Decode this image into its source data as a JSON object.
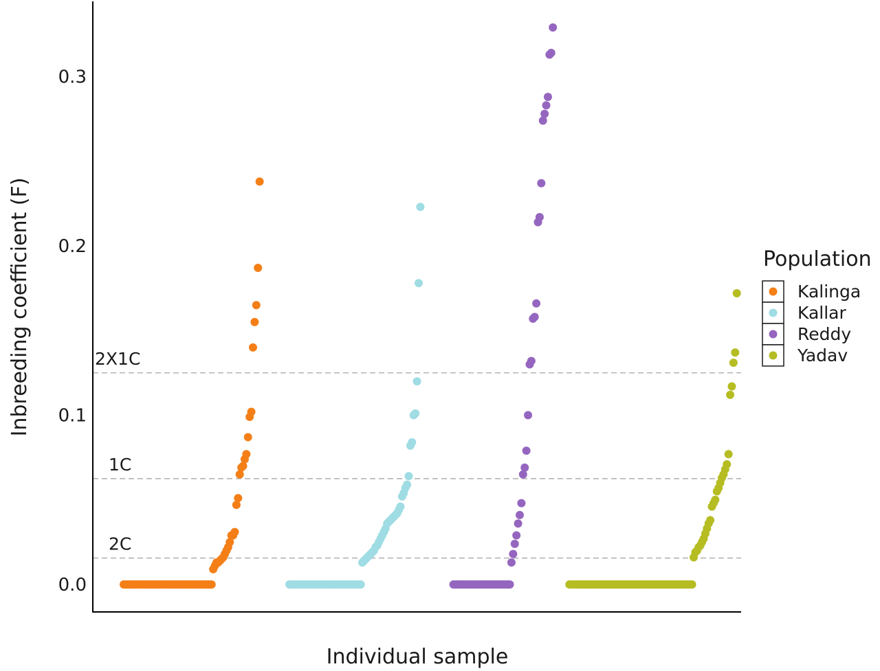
{
  "chart_data": {
    "type": "scatter",
    "xlabel": "Individual sample",
    "ylabel": "Inbreeding coefficient (F)",
    "ylim": [
      -0.016,
      0.345
    ],
    "y_ticks": [
      {
        "value": 0.0,
        "label": "0.0"
      },
      {
        "value": 0.1,
        "label": "0.1"
      },
      {
        "value": 0.2,
        "label": "0.2"
      },
      {
        "value": 0.3,
        "label": "0.3"
      }
    ],
    "x_ticks_shown": false,
    "grid": false,
    "reference_lines": [
      {
        "label": "2X1C",
        "value": 0.125
      },
      {
        "label": "1C",
        "value": 0.0625
      },
      {
        "label": "2C",
        "value": 0.0156
      }
    ],
    "legend": {
      "title": "Population",
      "position": "right"
    },
    "series": [
      {
        "name": "Kalinga",
        "color": "#F47F17",
        "start": 1,
        "zero_count": 54,
        "nonzero": [
          0.009,
          0.011,
          0.013,
          0.013,
          0.014,
          0.015,
          0.016,
          0.018,
          0.02,
          0.022,
          0.025,
          0.029,
          0.029,
          0.031,
          0.047,
          0.051,
          0.065,
          0.069,
          0.07,
          0.074,
          0.077,
          0.087,
          0.099,
          0.102,
          0.14,
          0.155,
          0.165,
          0.187,
          0.238
        ]
      },
      {
        "name": "Kallar",
        "color": "#9FDCE3",
        "start": 101,
        "zero_count": 44,
        "nonzero": [
          0.013,
          0.014,
          0.015,
          0.016,
          0.017,
          0.018,
          0.019,
          0.02,
          0.022,
          0.023,
          0.025,
          0.027,
          0.029,
          0.031,
          0.033,
          0.036,
          0.037,
          0.038,
          0.039,
          0.04,
          0.041,
          0.042,
          0.044,
          0.046,
          0.052,
          0.054,
          0.057,
          0.059,
          0.064,
          0.082,
          0.084,
          0.1,
          0.101,
          0.12,
          0.178,
          0.223
        ]
      },
      {
        "name": "Reddy",
        "color": "#9566BF",
        "start": 200,
        "zero_count": 35,
        "nonzero": [
          0.013,
          0.018,
          0.024,
          0.029,
          0.036,
          0.041,
          0.048,
          0.065,
          0.069,
          0.079,
          0.1,
          0.13,
          0.132,
          0.157,
          0.158,
          0.166,
          0.214,
          0.217,
          0.237,
          0.274,
          0.278,
          0.283,
          0.288,
          0.313,
          0.314,
          0.329
        ]
      },
      {
        "name": "Yadav",
        "color": "#B5BD23",
        "start": 270,
        "zero_count": 75,
        "nonzero": [
          0.016,
          0.019,
          0.02,
          0.022,
          0.023,
          0.025,
          0.027,
          0.03,
          0.033,
          0.036,
          0.038,
          0.046,
          0.048,
          0.05,
          0.055,
          0.057,
          0.06,
          0.063,
          0.065,
          0.068,
          0.071,
          0.077,
          0.112,
          0.117,
          0.131,
          0.137,
          0.172
        ]
      }
    ]
  }
}
